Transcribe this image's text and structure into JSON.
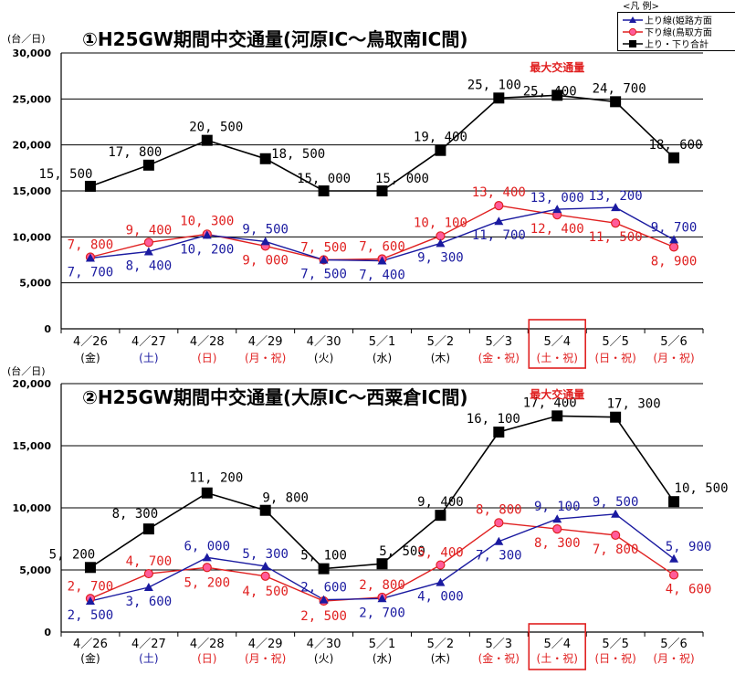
{
  "legend": {
    "title": "<凡 例>",
    "items": [
      {
        "label": "上り線(姫路方面",
        "color": "#1a1aa0",
        "marker": "triangle"
      },
      {
        "label": "下り線(鳥取方面",
        "color": "#e02020",
        "marker": "circle"
      },
      {
        "label": "上り・下り合計",
        "color": "#000000",
        "marker": "square"
      }
    ]
  },
  "colors": {
    "up": "#1a1aa0",
    "down": "#e02020",
    "total": "#000000",
    "highlight": "#e02020",
    "weekday": "#000000",
    "saturday": "#1a1aa0",
    "holiday": "#e02020"
  },
  "chart_data": [
    {
      "type": "line",
      "title": "①H25GW期間中交通量(河原IC～鳥取南IC間)",
      "ylabel": "(台／日)",
      "ylim": [
        0,
        30000
      ],
      "yticks": [
        "0",
        "5,000",
        "10,000",
        "15,000",
        "20,000",
        "25,000",
        "30,000"
      ],
      "grid": true,
      "categories": [
        {
          "date": "4／26",
          "day": "(金)",
          "kind": "weekday"
        },
        {
          "date": "4／27",
          "day": "(土)",
          "kind": "saturday"
        },
        {
          "date": "4／28",
          "day": "(日)",
          "kind": "holiday"
        },
        {
          "date": "4／29",
          "day": "(月・祝)",
          "kind": "holiday"
        },
        {
          "date": "4／30",
          "day": "(火)",
          "kind": "weekday"
        },
        {
          "date": "5／1",
          "day": "(水)",
          "kind": "weekday"
        },
        {
          "date": "5／2",
          "day": "(木)",
          "kind": "weekday"
        },
        {
          "date": "5／3",
          "day": "(金・祝)",
          "kind": "holiday"
        },
        {
          "date": "5／4",
          "day": "(土・祝)",
          "kind": "holiday"
        },
        {
          "date": "5／5",
          "day": "(日・祝)",
          "kind": "holiday"
        },
        {
          "date": "5／6",
          "day": "(月・祝)",
          "kind": "holiday"
        }
      ],
      "highlight_index": 8,
      "peak_label": "最大交通量",
      "series": [
        {
          "key": "up",
          "values": [
            7700,
            8400,
            10200,
            9500,
            7500,
            7400,
            9300,
            11700,
            13000,
            13200,
            9700
          ],
          "labels": [
            "7, 700",
            "8, 400",
            "10, 200",
            "9, 500",
            "7, 500",
            "7, 400",
            "9, 300",
            "11, 700",
            "13, 000",
            "13, 200",
            "9, 700"
          ]
        },
        {
          "key": "down",
          "values": [
            7800,
            9400,
            10300,
            9000,
            7500,
            7600,
            10100,
            13400,
            12400,
            11500,
            8900
          ],
          "labels": [
            "7, 800",
            "9, 400",
            "10, 300",
            "9, 000",
            "7, 500",
            "7, 600",
            "10, 100",
            "13, 400",
            "12, 400",
            "11, 500",
            "8, 900"
          ]
        },
        {
          "key": "total",
          "values": [
            15500,
            17800,
            20500,
            18500,
            15000,
            15000,
            19400,
            25100,
            25400,
            24700,
            18600
          ],
          "labels": [
            "15, 500",
            "17, 800",
            "20, 500",
            "18, 500",
            "15, 000",
            "15, 000",
            "19, 400",
            "25, 100",
            "25, 400",
            "24, 700",
            "18, 600"
          ]
        }
      ]
    },
    {
      "type": "line",
      "title": "②H25GW期間中交通量(大原IC～西粟倉IC間)",
      "ylabel": "(台／日)",
      "ylim": [
        0,
        20000
      ],
      "yticks": [
        "0",
        "5,000",
        "10,000",
        "15,000",
        "20,000"
      ],
      "grid": true,
      "categories": [
        {
          "date": "4／26",
          "day": "(金)",
          "kind": "weekday"
        },
        {
          "date": "4／27",
          "day": "(土)",
          "kind": "saturday"
        },
        {
          "date": "4／28",
          "day": "(日)",
          "kind": "holiday"
        },
        {
          "date": "4／29",
          "day": "(月・祝)",
          "kind": "holiday"
        },
        {
          "date": "4／30",
          "day": "(火)",
          "kind": "weekday"
        },
        {
          "date": "5／1",
          "day": "(水)",
          "kind": "weekday"
        },
        {
          "date": "5／2",
          "day": "(木)",
          "kind": "weekday"
        },
        {
          "date": "5／3",
          "day": "(金・祝)",
          "kind": "holiday"
        },
        {
          "date": "5／4",
          "day": "(土・祝)",
          "kind": "holiday"
        },
        {
          "date": "5／5",
          "day": "(日・祝)",
          "kind": "holiday"
        },
        {
          "date": "5／6",
          "day": "(月・祝)",
          "kind": "holiday"
        }
      ],
      "highlight_index": 8,
      "peak_label": "最大交通量",
      "series": [
        {
          "key": "up",
          "values": [
            2500,
            3600,
            6000,
            5300,
            2600,
            2700,
            4000,
            7300,
            9100,
            9500,
            5900
          ],
          "labels": [
            "2, 500",
            "3, 600",
            "6, 000",
            "5, 300",
            "2, 600",
            "2, 700",
            "4, 000",
            "7, 300",
            "9, 100",
            "9, 500",
            "5, 900"
          ]
        },
        {
          "key": "down",
          "values": [
            2700,
            4700,
            5200,
            4500,
            2500,
            2800,
            5400,
            8800,
            8300,
            7800,
            4600
          ],
          "labels": [
            "2, 700",
            "4, 700",
            "5, 200",
            "4, 500",
            "2, 500",
            "2, 800",
            "5, 400",
            "8, 800",
            "8, 300",
            "7, 800",
            "4, 600"
          ]
        },
        {
          "key": "total",
          "values": [
            5200,
            8300,
            11200,
            9800,
            5100,
            5500,
            9400,
            16100,
            17400,
            17300,
            10500
          ],
          "labels": [
            "5, 200",
            "8, 300",
            "11, 200",
            "9, 800",
            "5, 100",
            "5, 500",
            "9, 400",
            "16, 100",
            "17, 400",
            "17, 300",
            "10, 500"
          ]
        }
      ]
    }
  ]
}
